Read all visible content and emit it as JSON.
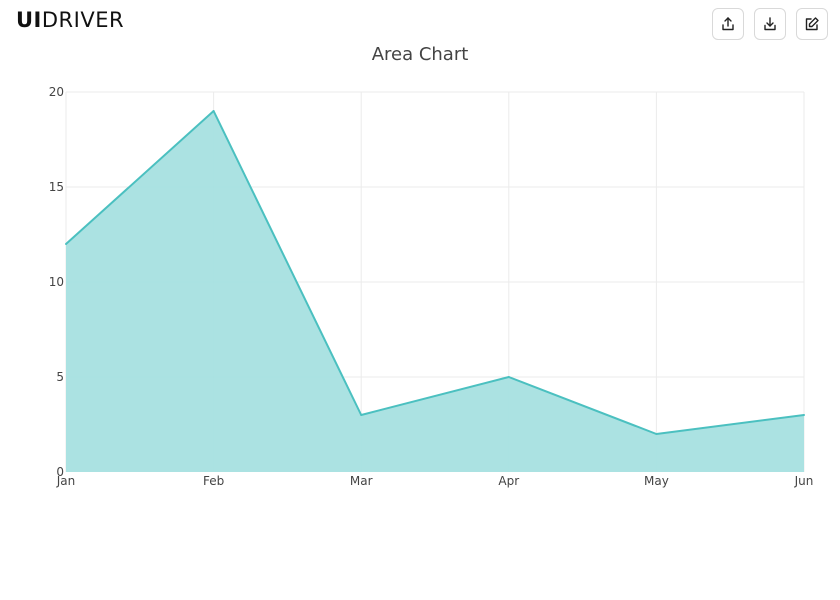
{
  "brand": {
    "logo_ui": "UI",
    "logo_rest": "DRIVER"
  },
  "toolbar": [
    {
      "name": "share-button",
      "icon": "share-icon"
    },
    {
      "name": "download-button",
      "icon": "download-icon"
    },
    {
      "name": "edit-button",
      "icon": "edit-icon"
    }
  ],
  "chart_data": {
    "type": "area",
    "title": "Area Chart",
    "categories": [
      "Jan",
      "Feb",
      "Mar",
      "Apr",
      "May",
      "Jun"
    ],
    "values": [
      12,
      19,
      3,
      5,
      2,
      3
    ],
    "ylim": [
      0,
      20
    ],
    "yticks": [
      0,
      5,
      10,
      15,
      20
    ],
    "grid": true,
    "colors": {
      "line": "#4bc0c0",
      "fill": "#a7e0e0",
      "grid": "#ebebeb"
    }
  }
}
